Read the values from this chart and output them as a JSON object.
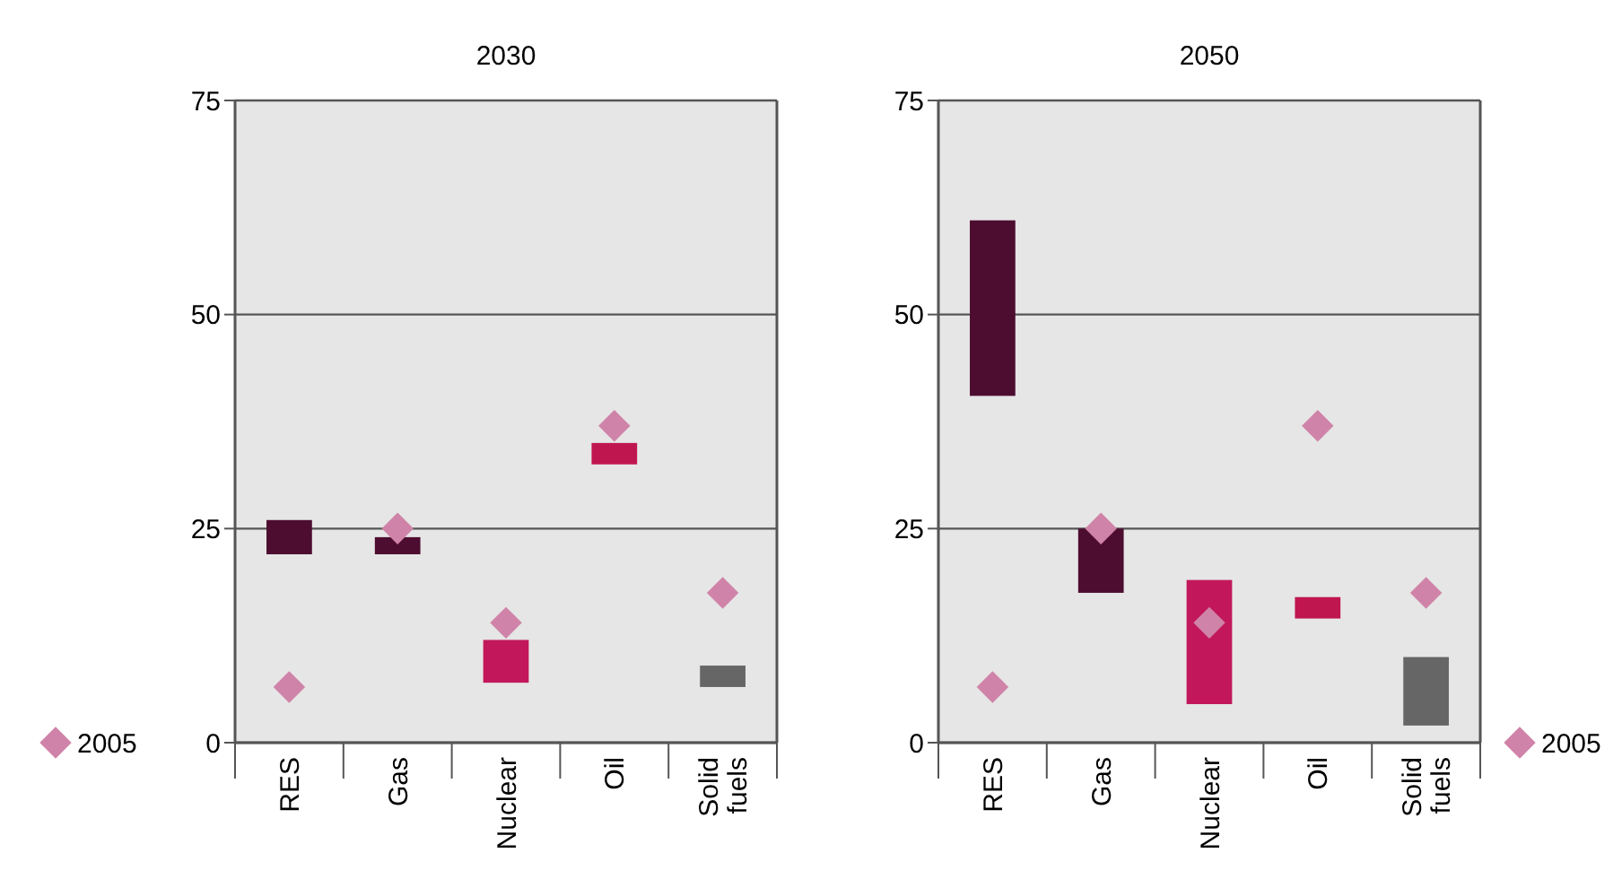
{
  "chart_data": [
    {
      "type": "bar",
      "title": "2030",
      "categories": [
        "RES",
        "Gas",
        "Nuclear",
        "Oil",
        "Solid fuels"
      ],
      "ylim": [
        0,
        75
      ],
      "yticks": [
        0,
        25,
        50,
        75
      ],
      "grid": "y",
      "legend": "bottom left",
      "series": [
        {
          "colors": [
            "#4d0d30",
            "#4d0d30",
            "#c2185b",
            "#c0164f",
            "#666666"
          ],
          "base": [
            22,
            22,
            7,
            32.5,
            6.5
          ],
          "values": [
            4,
            2,
            5,
            2.5,
            2.5
          ]
        },
        {
          "type": "scatter",
          "name": "2005",
          "color": "#d083a8",
          "marker": "diamond",
          "x": [
            "RES",
            "Gas",
            "Nuclear",
            "Oil",
            "Solid fuels"
          ],
          "values": [
            6.5,
            25,
            14,
            37,
            17.5
          ]
        }
      ]
    },
    {
      "type": "bar",
      "title": "2050",
      "categories": [
        "RES",
        "Gas",
        "Nuclear",
        "Oil",
        "Solid fuels"
      ],
      "ylim": [
        0,
        75
      ],
      "yticks": [
        0,
        25,
        50,
        75
      ],
      "grid": "y",
      "legend": "bottom right",
      "series": [
        {
          "colors": [
            "#4d0d30",
            "#4d0d30",
            "#c2185b",
            "#c0164f",
            "#666666"
          ],
          "base": [
            40.5,
            17.5,
            4.5,
            14.5,
            2
          ],
          "values": [
            20.5,
            7.5,
            14.5,
            2.5,
            8
          ]
        },
        {
          "type": "scatter",
          "name": "2005",
          "color": "#d083a8",
          "marker": "diamond",
          "x": [
            "RES",
            "Gas",
            "Nuclear",
            "Oil",
            "Solid fuels"
          ],
          "values": [
            6.5,
            25,
            14,
            37,
            17.5
          ]
        }
      ]
    }
  ]
}
